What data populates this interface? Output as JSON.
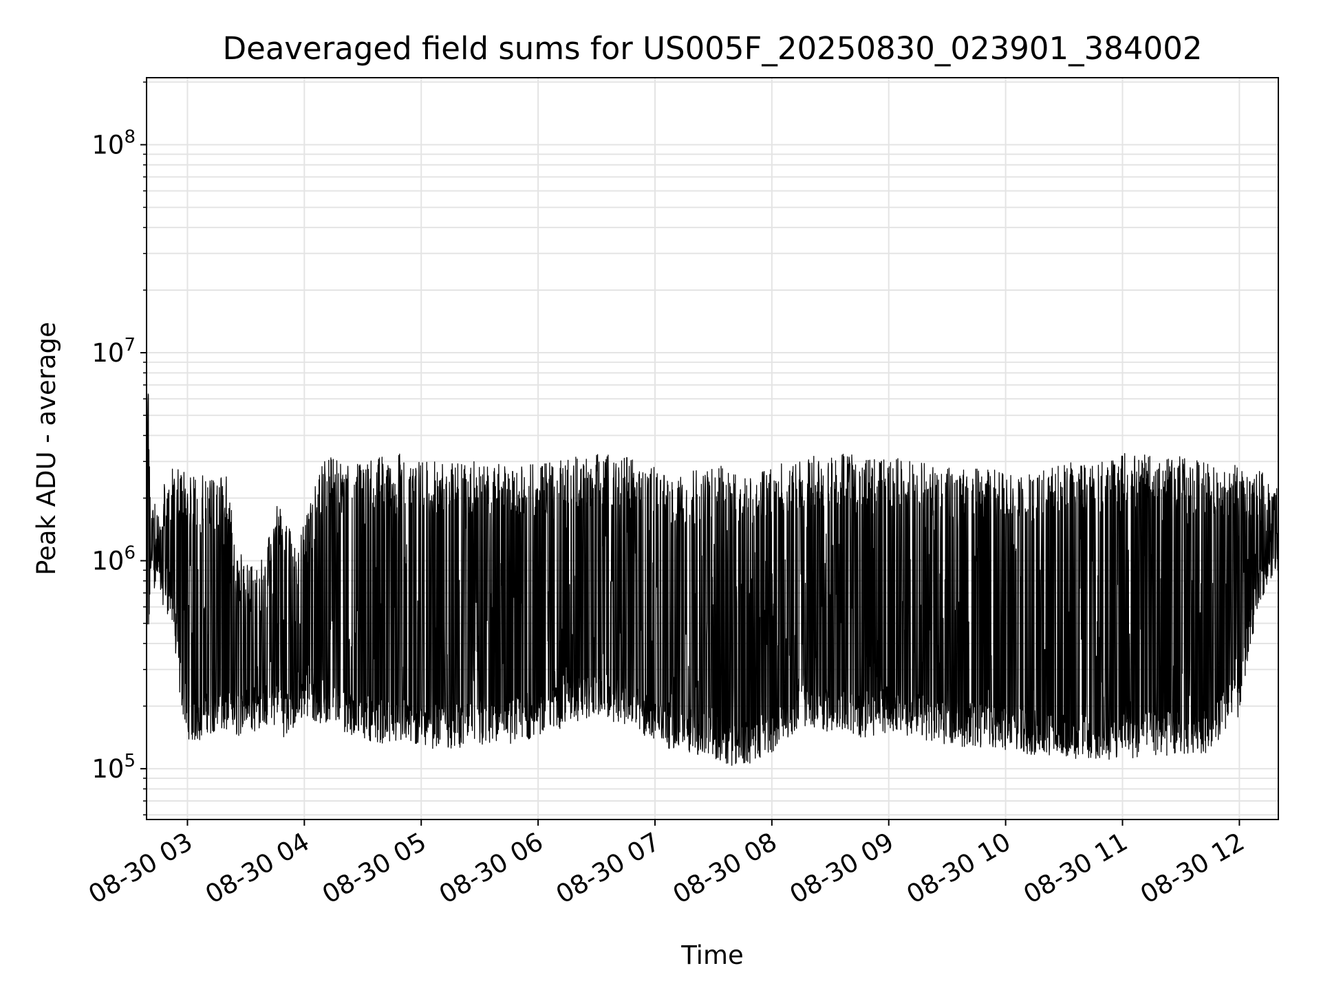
{
  "chart_data": {
    "type": "line",
    "title": "Deaveraged field sums for US005F_20250830_023901_384002",
    "xlabel": "Time",
    "ylabel": "Peak ADU - average",
    "yscale": "log",
    "ylim": [
      57000,
      210000000
    ],
    "xlim": [
      "08-30 02:39",
      "08-30 12:20"
    ],
    "grid": true,
    "x_ticks": [
      "08-30 03",
      "08-30 04",
      "08-30 05",
      "08-30 06",
      "08-30 07",
      "08-30 08",
      "08-30 09",
      "08-30 10",
      "08-30 11",
      "08-30 12"
    ],
    "y_ticks": [
      {
        "value": 100000,
        "base": "10",
        "exp": "5"
      },
      {
        "value": 1000000,
        "base": "10",
        "exp": "6"
      },
      {
        "value": 10000000,
        "base": "10",
        "exp": "7"
      },
      {
        "value": 100000000,
        "base": "10",
        "exp": "8"
      }
    ],
    "series": [
      {
        "color": "#000000",
        "x": [
          "08-30 02:39",
          "08-30 02:40",
          "08-30 02:41",
          "08-30 02:44",
          "08-30 02:48",
          "08-30 02:52",
          "08-30 02:56",
          "08-30 03:00",
          "08-30 03:05",
          "08-30 03:10",
          "08-30 03:15",
          "08-30 03:20",
          "08-30 03:25",
          "08-30 03:30",
          "08-30 03:35",
          "08-30 03:40",
          "08-30 03:45",
          "08-30 03:50",
          "08-30 03:55",
          "08-30 04:00",
          "08-30 04:10",
          "08-30 04:20",
          "08-30 04:30",
          "08-30 04:40",
          "08-30 04:50",
          "08-30 05:00",
          "08-30 05:15",
          "08-30 05:30",
          "08-30 05:45",
          "08-30 06:00",
          "08-30 06:15",
          "08-30 06:30",
          "08-30 06:45",
          "08-30 07:00",
          "08-30 07:15",
          "08-30 07:30",
          "08-30 07:45",
          "08-30 08:00",
          "08-30 08:15",
          "08-30 08:30",
          "08-30 08:45",
          "08-30 09:00",
          "08-30 09:15",
          "08-30 09:30",
          "08-30 09:45",
          "08-30 10:00",
          "08-30 10:15",
          "08-30 10:30",
          "08-30 10:45",
          "08-30 11:00",
          "08-30 11:15",
          "08-30 11:30",
          "08-30 11:45",
          "08-30 12:00",
          "08-30 12:05",
          "08-30 12:10",
          "08-30 12:15",
          "08-30 12:20"
        ],
        "high": [
          6500000,
          7200000,
          1800000,
          1900000,
          2500000,
          2800000,
          2900000,
          2800000,
          2500000,
          2700000,
          2300000,
          2800000,
          1200000,
          1000000,
          900000,
          1100000,
          1900000,
          1800000,
          1200000,
          1500000,
          3200000,
          3000000,
          2900000,
          3200000,
          3300000,
          3000000,
          3000000,
          3000000,
          2900000,
          2900000,
          3100000,
          3300000,
          3200000,
          2800000,
          2600000,
          3000000,
          2500000,
          2900000,
          3100000,
          3300000,
          3300000,
          3200000,
          3100000,
          2800000,
          2800000,
          2700000,
          2600000,
          3000000,
          2900000,
          3300000,
          3300000,
          3200000,
          2900000,
          2900000,
          2600000,
          2700000,
          2600000,
          2500000
        ],
        "low": [
          330000,
          300000,
          800000,
          700000,
          600000,
          500000,
          220000,
          140000,
          130000,
          150000,
          140000,
          150000,
          140000,
          150000,
          150000,
          160000,
          160000,
          140000,
          150000,
          180000,
          160000,
          150000,
          140000,
          130000,
          130000,
          125000,
          125000,
          125000,
          130000,
          140000,
          160000,
          180000,
          160000,
          130000,
          120000,
          110000,
          100000,
          120000,
          160000,
          150000,
          140000,
          150000,
          140000,
          130000,
          125000,
          120000,
          115000,
          110000,
          110000,
          110000,
          115000,
          115000,
          120000,
          180000,
          350000,
          600000,
          800000,
          900000
        ]
      }
    ]
  }
}
